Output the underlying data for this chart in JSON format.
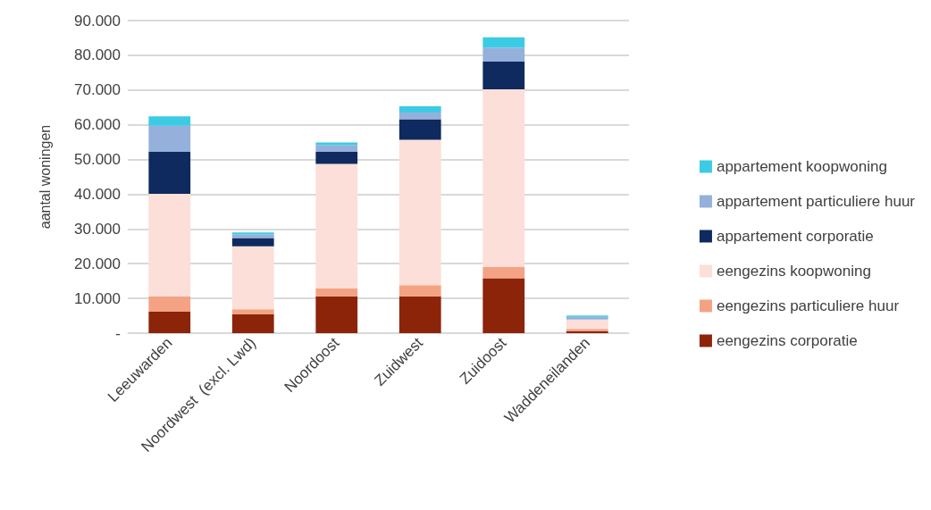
{
  "chart_data": {
    "type": "bar",
    "stacked": true,
    "ylabel": "aantal woningen",
    "categories": [
      "Leeuwarden",
      "Noordwest  (excl. Lwd)",
      "Noordoost",
      "Zuidwest",
      "Zuidoost",
      "Waddeneilanden"
    ],
    "series": [
      {
        "name": "eengezins corporatie",
        "color": "#8b2409",
        "values": [
          6200,
          5400,
          10600,
          10600,
          15800,
          500
        ]
      },
      {
        "name": "eengezins particuliere huur",
        "color": "#f4a284",
        "values": [
          4400,
          1500,
          2300,
          3200,
          3200,
          700
        ]
      },
      {
        "name": "eengezins koopwoning",
        "color": "#fbdfd8",
        "values": [
          29500,
          18100,
          35800,
          41900,
          51200,
          2700
        ]
      },
      {
        "name": "appartement corporatie",
        "color": "#0e2a5e",
        "values": [
          12100,
          2400,
          3500,
          5900,
          8000,
          null
        ]
      },
      {
        "name": "appartement particuliere huur",
        "color": "#94b0db",
        "values": [
          7500,
          1000,
          1900,
          1900,
          4000,
          800
        ]
      },
      {
        "name": "appartement koopwoning",
        "color": "#3ccbe4",
        "values": [
          2700,
          600,
          800,
          1800,
          3000,
          400
        ]
      }
    ],
    "ylim": [
      0,
      90000
    ],
    "yticks": [
      {
        "value": 0,
        "label": "-"
      },
      {
        "value": 10000,
        "label": "10.000"
      },
      {
        "value": 20000,
        "label": "20.000"
      },
      {
        "value": 30000,
        "label": "30.000"
      },
      {
        "value": 40000,
        "label": "40.000"
      },
      {
        "value": 50000,
        "label": "50.000"
      },
      {
        "value": 60000,
        "label": "60.000"
      },
      {
        "value": 70000,
        "label": "70.000"
      },
      {
        "value": 80000,
        "label": "80.000"
      },
      {
        "value": 90000,
        "label": "90.000"
      }
    ],
    "grid": "y",
    "legend": "right"
  }
}
